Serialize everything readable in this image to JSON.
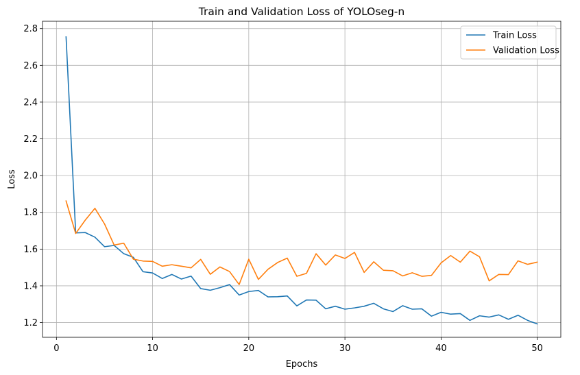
{
  "chart_data": {
    "type": "line",
    "title": "Train and Validation Loss of YOLOseg-n",
    "xlabel": "Epochs",
    "ylabel": "Loss",
    "xlim": [
      -1.45,
      52.45
    ],
    "ylim": [
      1.12,
      2.84
    ],
    "xticks": [
      0,
      10,
      20,
      30,
      40,
      50
    ],
    "yticks": [
      1.2,
      1.4,
      1.6,
      1.8,
      2.0,
      2.2,
      2.4,
      2.6,
      2.8
    ],
    "grid": true,
    "legend_position": "top-right",
    "x": [
      1,
      2,
      3,
      4,
      5,
      6,
      7,
      8,
      9,
      10,
      11,
      12,
      13,
      14,
      15,
      16,
      17,
      18,
      19,
      20,
      21,
      22,
      23,
      24,
      25,
      26,
      27,
      28,
      29,
      30,
      31,
      32,
      33,
      34,
      35,
      36,
      37,
      38,
      39,
      40,
      41,
      42,
      43,
      44,
      45,
      46,
      47,
      48,
      49,
      50
    ],
    "series": [
      {
        "name": "Train Loss",
        "color": "#1f77b4",
        "values": [
          2.755,
          1.688,
          1.69,
          1.665,
          1.613,
          1.62,
          1.575,
          1.555,
          1.477,
          1.47,
          1.44,
          1.462,
          1.437,
          1.453,
          1.385,
          1.376,
          1.39,
          1.407,
          1.35,
          1.369,
          1.375,
          1.34,
          1.341,
          1.345,
          1.291,
          1.323,
          1.322,
          1.275,
          1.289,
          1.273,
          1.28,
          1.289,
          1.305,
          1.275,
          1.26,
          1.292,
          1.273,
          1.275,
          1.235,
          1.256,
          1.246,
          1.249,
          1.212,
          1.237,
          1.23,
          1.242,
          1.218,
          1.24,
          1.212,
          1.193
        ]
      },
      {
        "name": "Validation Loss",
        "color": "#ff7f0e",
        "values": [
          1.862,
          1.685,
          1.758,
          1.822,
          1.737,
          1.622,
          1.632,
          1.545,
          1.535,
          1.533,
          1.507,
          1.515,
          1.507,
          1.498,
          1.544,
          1.463,
          1.503,
          1.478,
          1.407,
          1.545,
          1.435,
          1.49,
          1.527,
          1.551,
          1.452,
          1.468,
          1.575,
          1.513,
          1.568,
          1.549,
          1.582,
          1.473,
          1.531,
          1.485,
          1.482,
          1.454,
          1.471,
          1.452,
          1.457,
          1.525,
          1.565,
          1.529,
          1.589,
          1.558,
          1.427,
          1.462,
          1.461,
          1.536,
          1.517,
          1.529
        ]
      }
    ]
  }
}
